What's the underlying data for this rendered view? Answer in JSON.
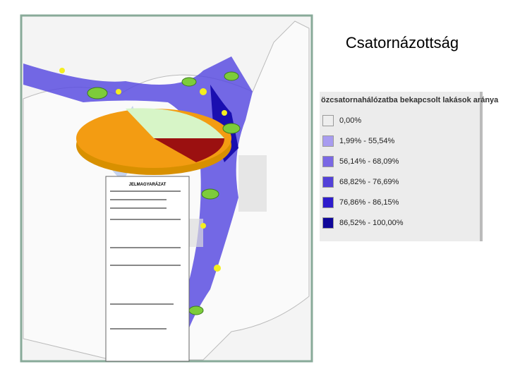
{
  "title": "Csatornázottság",
  "map": {
    "legend_heading": "JELMAGYARÁZAT"
  },
  "legend": {
    "title": "özcsatornahálózatba bekapcsolt lakások aránya",
    "items": [
      {
        "label": "0,00%",
        "color": "#eeeeee"
      },
      {
        "label": "1,99% - 55,54%",
        "color": "#a89cf0"
      },
      {
        "label": "56,14% - 68,09%",
        "color": "#7a68e4"
      },
      {
        "label": "68,82% - 76,69%",
        "color": "#5240d8"
      },
      {
        "label": "76,86% - 86,15%",
        "color": "#2e1ccc"
      },
      {
        "label": "86,52% - 100,00%",
        "color": "#0f0799"
      }
    ]
  }
}
